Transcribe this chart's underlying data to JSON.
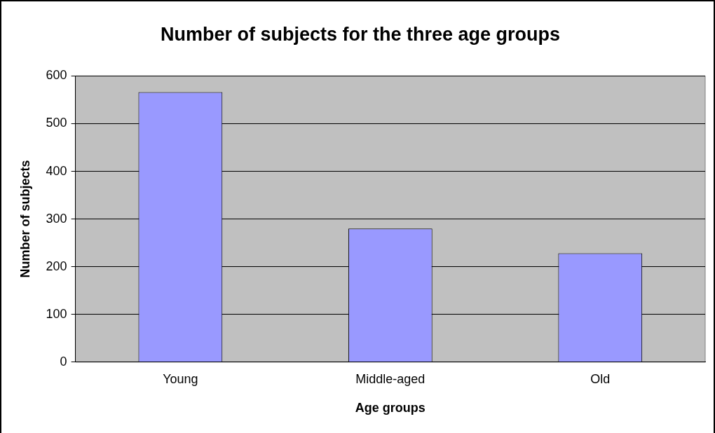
{
  "chart_data": {
    "type": "bar",
    "title": "Number of subjects for the three age groups",
    "xlabel": "Age groups",
    "ylabel": "Number of subjects",
    "categories": [
      "Young",
      "Middle-aged",
      "Old"
    ],
    "values": [
      566,
      280,
      228
    ],
    "color": "#9999ff",
    "ylim": [
      0,
      600
    ],
    "yticks": [
      0,
      100,
      200,
      300,
      400,
      500,
      600
    ],
    "grid": "y"
  }
}
